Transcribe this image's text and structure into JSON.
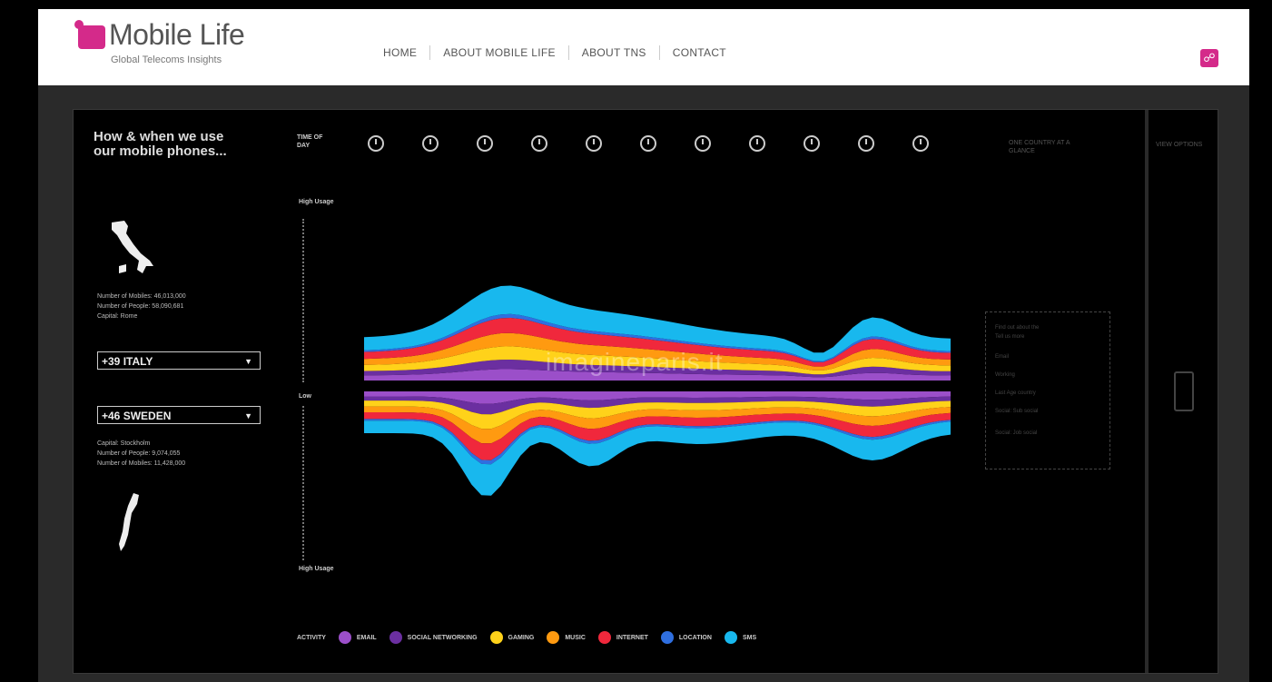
{
  "header": {
    "logo_title": "Mobile Life",
    "logo_subtitle": "Global Telecoms Insights",
    "nav": [
      "HOME",
      "ABOUT MOBILE LIFE",
      "ABOUT TNS",
      "CONTACT"
    ]
  },
  "viz": {
    "heading": "How & when we use our mobile phones...",
    "time_label": "TIME OF DAY",
    "faint_top_label": "ONE COUNTRY AT A GLANCE",
    "phone_label": "VIEW OPTIONS",
    "axis_top": "High Usage",
    "axis_mid": "Low",
    "axis_bottom": "High Usage",
    "country_top": {
      "stats": [
        "Number of Mobiles: 46,013,000",
        "Number of People: 58,090,681",
        "Capital: Rome"
      ],
      "select_value": "+39  ITALY"
    },
    "country_bottom": {
      "select_value": "+46  SWEDEN",
      "stats": [
        "Capital: Stockholm",
        "Number of People: 9,074,055",
        "Number of Mobiles: 11,428,000"
      ]
    },
    "info_box": [
      "Find out about the",
      "Tell us more",
      "Email",
      "Working",
      "Last Age country",
      "Social: Sub social",
      "Social: Job social"
    ],
    "watermark": "imagineparis.it",
    "legend_title": "ACTIVITY",
    "legend": [
      {
        "label": "EMAIL",
        "color": "#9b4fc9"
      },
      {
        "label": "SOCIAL NETWORKING",
        "color": "#6b2fa0"
      },
      {
        "label": "GAMING",
        "color": "#ffd21a"
      },
      {
        "label": "MUSIC",
        "color": "#ff9a10"
      },
      {
        "label": "INTERNET",
        "color": "#f0283c"
      },
      {
        "label": "LOCATION",
        "color": "#2f6fe0"
      },
      {
        "label": "SMS",
        "color": "#18b8ee"
      }
    ]
  }
}
